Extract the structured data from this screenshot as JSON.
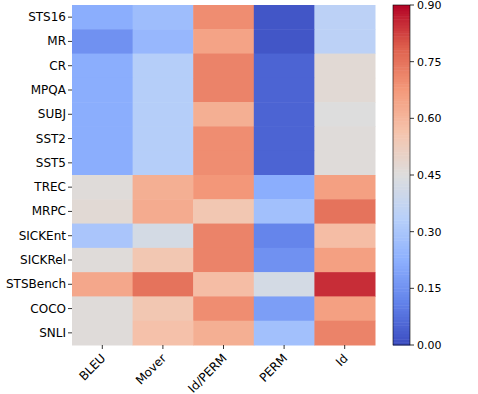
{
  "chart_data": {
    "type": "heatmap",
    "categories": [
      "BLEU",
      "Mover",
      "Id/PERM",
      "PERM",
      "Id"
    ],
    "rows": [
      "STS16",
      "MR",
      "CR",
      "MPQA",
      "SUBJ",
      "SST2",
      "SST5",
      "TREC",
      "MRPC",
      "SICKEnt",
      "SICKRel",
      "STSBench",
      "COCO",
      "SNLI"
    ],
    "values": [
      [
        0.22,
        0.27,
        0.7,
        0.02,
        0.35
      ],
      [
        0.15,
        0.25,
        0.65,
        0.02,
        0.35
      ],
      [
        0.22,
        0.33,
        0.72,
        0.05,
        0.47
      ],
      [
        0.22,
        0.33,
        0.72,
        0.05,
        0.47
      ],
      [
        0.22,
        0.33,
        0.62,
        0.05,
        0.45
      ],
      [
        0.22,
        0.33,
        0.7,
        0.05,
        0.46
      ],
      [
        0.22,
        0.33,
        0.7,
        0.05,
        0.46
      ],
      [
        0.46,
        0.62,
        0.68,
        0.22,
        0.66
      ],
      [
        0.47,
        0.63,
        0.55,
        0.28,
        0.75
      ],
      [
        0.3,
        0.42,
        0.72,
        0.12,
        0.58
      ],
      [
        0.46,
        0.55,
        0.72,
        0.15,
        0.66
      ],
      [
        0.64,
        0.75,
        0.58,
        0.42,
        0.85
      ],
      [
        0.46,
        0.55,
        0.7,
        0.18,
        0.66
      ],
      [
        0.46,
        0.57,
        0.62,
        0.28,
        0.72
      ]
    ],
    "color_range": [
      0,
      0.9
    ],
    "color_ticks": [
      {
        "value": 0,
        "label": "0.00"
      },
      {
        "value": 0.15,
        "label": "0.15"
      },
      {
        "value": 0.3,
        "label": "0.30"
      },
      {
        "value": 0.45,
        "label": "0.45"
      },
      {
        "value": 0.6,
        "label": "0.60"
      },
      {
        "value": 0.75,
        "label": "0.75"
      },
      {
        "value": 0.9,
        "label": "0.90"
      }
    ]
  }
}
